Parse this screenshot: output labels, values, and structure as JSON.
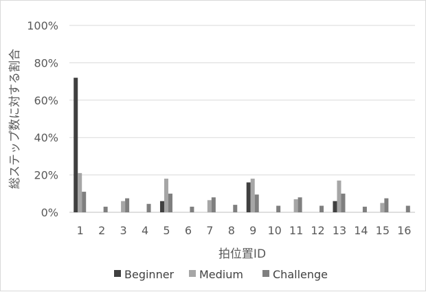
{
  "chart_data": {
    "type": "bar",
    "title": "",
    "xlabel": "拍位置ID",
    "ylabel": "総ステップ数に対する割合",
    "ylim": [
      0,
      100
    ],
    "yticks": [
      "0%",
      "20%",
      "40%",
      "60%",
      "80%",
      "100%"
    ],
    "categories": [
      "1",
      "2",
      "3",
      "4",
      "5",
      "6",
      "7",
      "8",
      "9",
      "10",
      "11",
      "12",
      "13",
      "14",
      "15",
      "16"
    ],
    "series": [
      {
        "name": "Beginner",
        "color": "#404040",
        "values": [
          72,
          0,
          0,
          0,
          6,
          0,
          0,
          0,
          16,
          0,
          0,
          0,
          6,
          0,
          0,
          0
        ]
      },
      {
        "name": "Medium",
        "color": "#a6a6a6",
        "values": [
          21,
          0,
          6,
          0,
          18,
          0,
          6.5,
          0,
          18,
          0,
          7,
          0,
          17,
          0,
          5,
          0
        ]
      },
      {
        "name": "Challenge",
        "color": "#7f7f7f",
        "values": [
          11,
          3,
          7.5,
          4.5,
          10,
          3,
          8,
          4,
          9.5,
          3.5,
          8,
          3.5,
          10,
          3,
          7.5,
          3.5
        ]
      }
    ],
    "grid": true,
    "legend_position": "bottom"
  }
}
